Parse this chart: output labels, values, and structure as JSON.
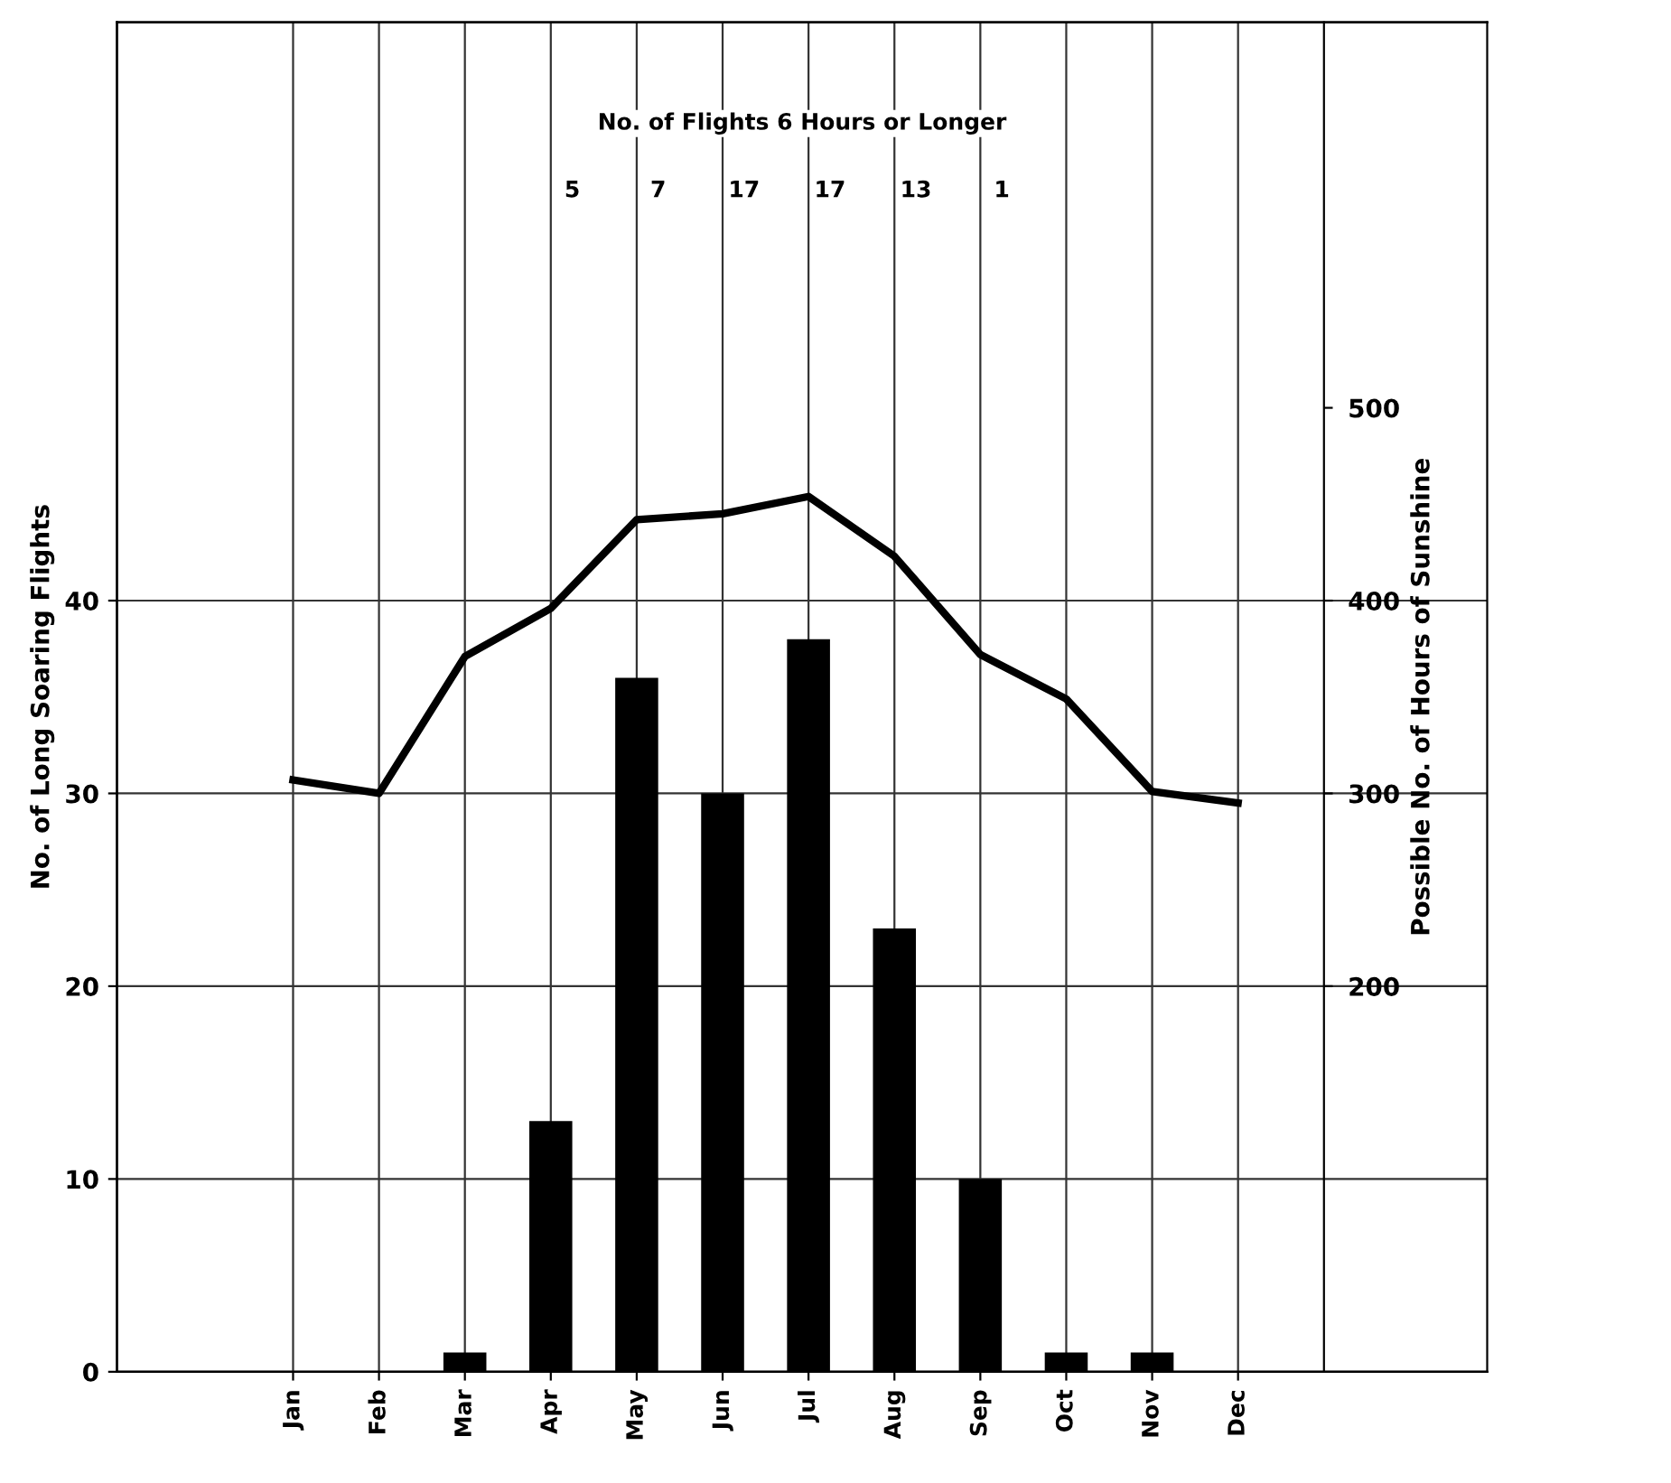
{
  "chart_data": {
    "type": "bar",
    "ylabel": "No. of Long Soaring Flights",
    "y2label": "Possible No. of Hours of Sunshine",
    "categories": [
      "Jan",
      "Feb",
      "Mar",
      "Apr",
      "May",
      "Jun",
      "Jul",
      "Aug",
      "Sep",
      "Oct",
      "Nov",
      "Dec"
    ],
    "series": [
      {
        "color": "#000000",
        "values": [
          0,
          0,
          1,
          13,
          36,
          30,
          38,
          23,
          10,
          1,
          1,
          0
        ]
      },
      {
        "type": "line",
        "axis": "y2",
        "color": "#000000",
        "values": [
          307,
          300,
          371,
          396,
          442,
          445,
          454,
          423,
          372,
          349,
          301,
          295
        ]
      }
    ],
    "ylim": [
      0,
      70
    ],
    "yticks": [
      0,
      10,
      20,
      30,
      40
    ],
    "y2lim": [
      0,
      700
    ],
    "y2ticks": [
      200,
      300,
      400,
      500
    ],
    "grid": true,
    "marker": "none",
    "line_style": "solid",
    "annotations": [
      "No. of Flights 6 Hours or Longer",
      "5",
      "7",
      "17",
      "17",
      "13",
      "1"
    ]
  }
}
